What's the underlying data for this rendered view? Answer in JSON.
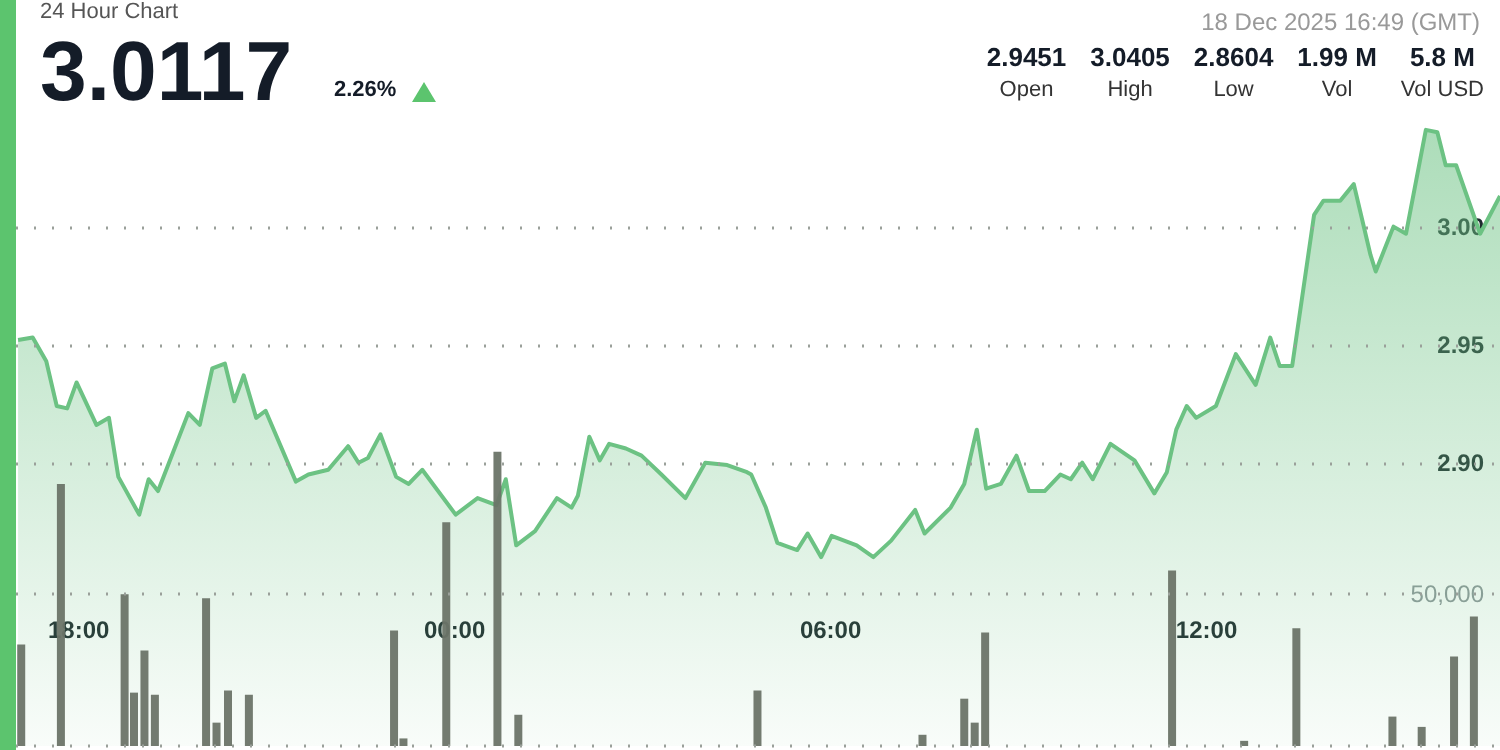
{
  "chart_data": {
    "type": "area",
    "title": "24 Hour Chart",
    "annotations": [
      "3.0117",
      "2.26%",
      "18 Dec 2025 16:49 (GMT)",
      "2.9451",
      "Open",
      "3.0405",
      "High",
      "2.8604",
      "Low",
      "1.99 M",
      "Vol",
      "5.8 M",
      "Vol USD"
    ],
    "xlim": [
      "2025-12-17T17:00",
      "2025-12-18T16:41"
    ],
    "xticks": [
      {
        "value": "2025-12-17T18:00",
        "label": "18:00"
      },
      {
        "value": "2025-12-18T00:00",
        "label": "00:00"
      },
      {
        "value": "2025-12-18T06:00",
        "label": "06:00"
      },
      {
        "value": "2025-12-18T12:00",
        "label": "12:00"
      }
    ],
    "ylim": [
      2.78,
      3.096
    ],
    "yticks": [
      {
        "value": 2.9,
        "label": "2.90"
      },
      {
        "value": 2.95,
        "label": "2.95"
      },
      {
        "value": 3.0,
        "label": "3.00"
      }
    ],
    "y2lim": [
      0,
      246000
    ],
    "y2ticks": [
      {
        "value": 0,
        "label": null
      },
      {
        "value": 50000,
        "label": "50,000"
      }
    ],
    "grid": "y",
    "series": [
      {
        "color": "#6cc283",
        "x": [
          "2025-12-17T17:02",
          "2025-12-17T17:16",
          "2025-12-17T17:29",
          "2025-12-17T17:39",
          "2025-12-17T17:49",
          "2025-12-17T17:58",
          "2025-12-17T18:17",
          "2025-12-17T18:29",
          "2025-12-17T18:38",
          "2025-12-17T18:58",
          "2025-12-17T19:07",
          "2025-12-17T19:16",
          "2025-12-17T19:45",
          "2025-12-17T19:56",
          "2025-12-17T20:08",
          "2025-12-17T20:20",
          "2025-12-17T20:29",
          "2025-12-17T20:38",
          "2025-12-17T20:50",
          "2025-12-17T20:59",
          "2025-12-17T21:28",
          "2025-12-17T21:40",
          "2025-12-17T21:59",
          "2025-12-17T22:18",
          "2025-12-17T22:28",
          "2025-12-17T22:37",
          "2025-12-17T22:49",
          "2025-12-17T23:04",
          "2025-12-17T23:16",
          "2025-12-17T23:29",
          "2025-12-18T00:01",
          "2025-12-18T00:22",
          "2025-12-18T00:40",
          "2025-12-18T00:49",
          "2025-12-18T00:59",
          "2025-12-18T01:17",
          "2025-12-18T01:38",
          "2025-12-18T01:52",
          "2025-12-18T01:58",
          "2025-12-18T02:09",
          "2025-12-18T02:19",
          "2025-12-18T02:28",
          "2025-12-18T02:44",
          "2025-12-18T02:59",
          "2025-12-18T03:18",
          "2025-12-18T03:41",
          "2025-12-18T04:00",
          "2025-12-18T04:21",
          "2025-12-18T04:40",
          "2025-12-18T04:44",
          "2025-12-18T04:58",
          "2025-12-18T05:09",
          "2025-12-18T05:28",
          "2025-12-18T05:38",
          "2025-12-18T05:51",
          "2025-12-18T06:01",
          "2025-12-18T06:25",
          "2025-12-18T06:41",
          "2025-12-18T06:58",
          "2025-12-18T07:21",
          "2025-12-18T07:30",
          "2025-12-18T07:55",
          "2025-12-18T08:08",
          "2025-12-18T08:20",
          "2025-12-18T08:29",
          "2025-12-18T08:43",
          "2025-12-18T08:58",
          "2025-12-18T09:10",
          "2025-12-18T09:25",
          "2025-12-18T09:40",
          "2025-12-18T09:50",
          "2025-12-18T10:01",
          "2025-12-18T10:11",
          "2025-12-18T10:28",
          "2025-12-18T10:51",
          "2025-12-18T11:10",
          "2025-12-18T11:22",
          "2025-12-18T11:31",
          "2025-12-18T11:41",
          "2025-12-18T11:50",
          "2025-12-18T12:09",
          "2025-12-18T12:28",
          "2025-12-18T12:47",
          "2025-12-18T13:01",
          "2025-12-18T13:10",
          "2025-12-18T13:22",
          "2025-12-18T13:43",
          "2025-12-18T13:52",
          "2025-12-18T14:08",
          "2025-12-18T14:21",
          "2025-12-18T14:37",
          "2025-12-18T14:42",
          "2025-12-18T14:59",
          "2025-12-18T15:11",
          "2025-12-18T15:30",
          "2025-12-18T15:41",
          "2025-12-18T15:49",
          "2025-12-18T15:59",
          "2025-12-18T16:22",
          "2025-12-18T16:41"
        ],
        "values": [
          2.952,
          2.953,
          2.943,
          2.924,
          2.923,
          2.934,
          2.916,
          2.919,
          2.894,
          2.878,
          2.893,
          2.888,
          2.921,
          2.916,
          2.94,
          2.942,
          2.926,
          2.937,
          2.919,
          2.922,
          2.892,
          2.895,
          2.897,
          2.907,
          2.9,
          2.902,
          2.912,
          2.894,
          2.891,
          2.897,
          2.878,
          2.885,
          2.882,
          2.893,
          2.865,
          2.871,
          2.885,
          2.881,
          2.886,
          2.911,
          2.901,
          2.908,
          2.906,
          2.903,
          2.895,
          2.885,
          2.9,
          2.899,
          2.896,
          2.895,
          2.881,
          2.866,
          2.863,
          2.87,
          2.86,
          2.869,
          2.865,
          2.86,
          2.867,
          2.88,
          2.87,
          2.881,
          2.891,
          2.914,
          2.889,
          2.891,
          2.903,
          2.888,
          2.888,
          2.895,
          2.893,
          2.9,
          2.893,
          2.908,
          2.901,
          2.887,
          2.896,
          2.914,
          2.924,
          2.919,
          2.924,
          2.946,
          2.933,
          2.953,
          2.941,
          2.941,
          3.005,
          3.011,
          3.011,
          3.018,
          2.988,
          2.981,
          3.0,
          2.997,
          3.041,
          3.04,
          3.026,
          3.026,
          2.997,
          3.013
        ]
      },
      {
        "type": "bar",
        "axis": "y2",
        "color": "#6b7468",
        "x": [
          "2025-12-17T17:05",
          "2025-12-17T17:43",
          "2025-12-17T18:44",
          "2025-12-17T18:53",
          "2025-12-17T19:03",
          "2025-12-17T19:13",
          "2025-12-17T20:02",
          "2025-12-17T20:12",
          "2025-12-17T20:23",
          "2025-12-17T20:43",
          "2025-12-17T23:02",
          "2025-12-17T23:11",
          "2025-12-17T23:52",
          "2025-12-18T00:41",
          "2025-12-18T01:01",
          "2025-12-18T04:50",
          "2025-12-18T07:28",
          "2025-12-18T08:08",
          "2025-12-18T08:18",
          "2025-12-18T08:28",
          "2025-12-18T11:27",
          "2025-12-18T12:36",
          "2025-12-18T13:26",
          "2025-12-18T14:58",
          "2025-12-18T15:26",
          "2025-12-18T15:57",
          "2025-12-18T16:16"
        ],
        "values": [
          33500,
          86400,
          50000,
          17600,
          31500,
          16900,
          48700,
          7700,
          18300,
          16900,
          38100,
          2500,
          73800,
          97000,
          10300,
          18300,
          3700,
          15600,
          7700,
          37400,
          57900,
          1700,
          38800,
          9700,
          6300,
          29500,
          42700
        ]
      }
    ]
  }
}
